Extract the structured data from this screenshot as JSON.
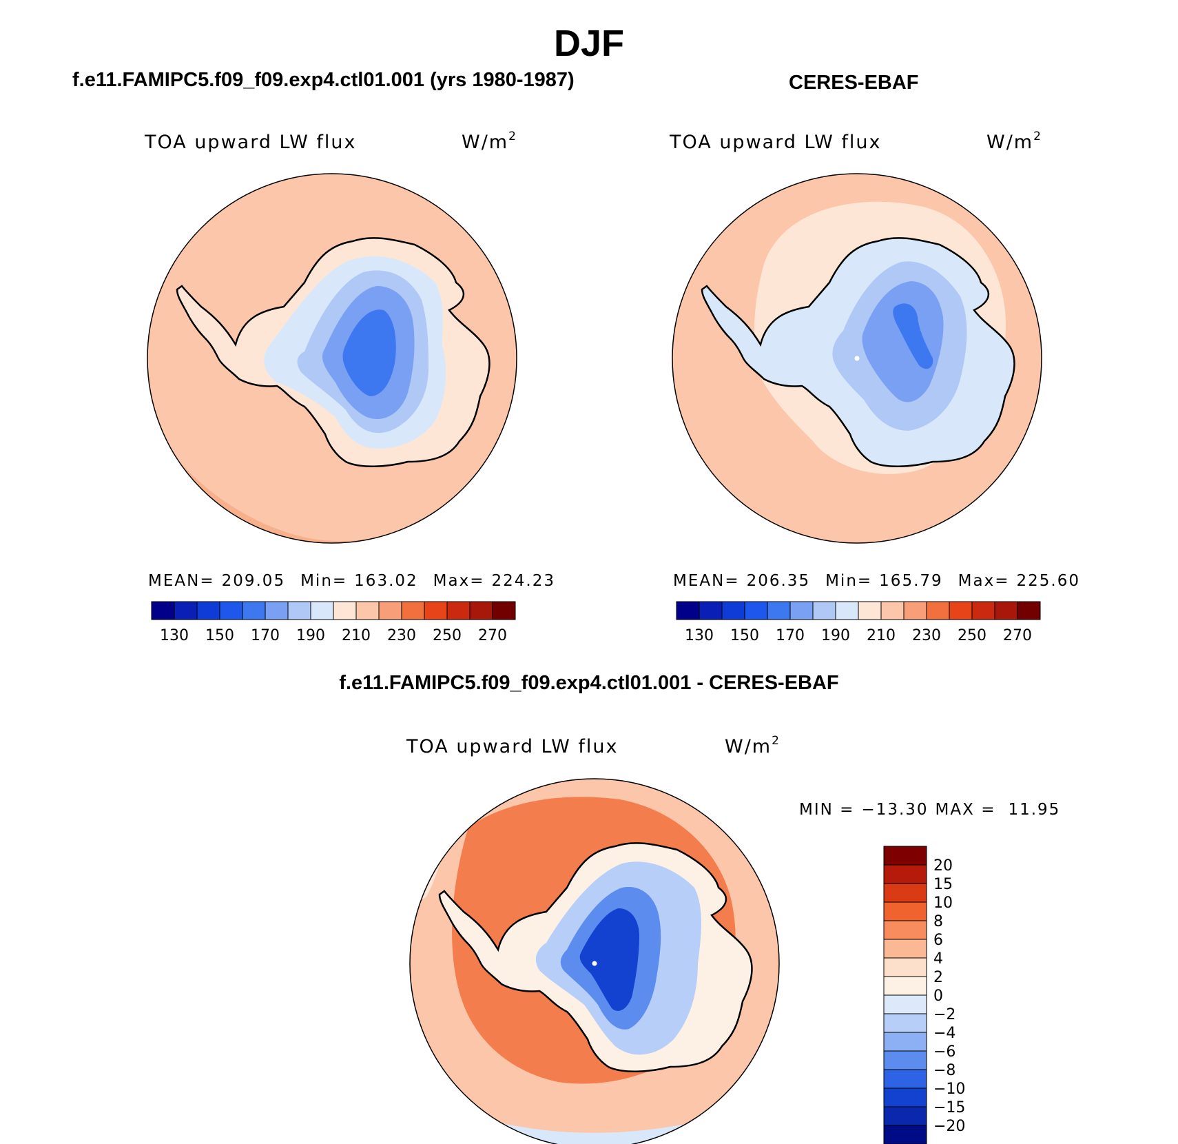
{
  "figure": {
    "title": "DJF"
  },
  "chart_data": [
    {
      "type": "heatmap",
      "header": "f.e11.FAMIPC5.f09_f09.exp4.ctl01.001 (yrs 1980-1987)",
      "variable": "TOA upward LW flux",
      "units": "W/m",
      "units_exp": "2",
      "stats": {
        "mean_label": "MEAN=",
        "mean": "209.05",
        "min_label": "Min=",
        "min": "163.02",
        "max_label": "Max=",
        "max": "224.23"
      },
      "levels": [
        130,
        150,
        170,
        190,
        210,
        230,
        250,
        270
      ],
      "level_labels": [
        "130",
        "150",
        "170",
        "190",
        "210",
        "230",
        "250",
        "270"
      ],
      "colors": [
        "#00008b",
        "#0a1fb5",
        "#0f3cd6",
        "#1e57ec",
        "#3e78f0",
        "#7aa0f3",
        "#b0c8f6",
        "#d8e8fa",
        "#fde6d6",
        "#fbc6aa",
        "#f89e78",
        "#f2703e",
        "#e8441a",
        "#cc2a10",
        "#a7180a",
        "#730000"
      ]
    },
    {
      "type": "heatmap",
      "header": "CERES-EBAF",
      "variable": "TOA upward LW flux",
      "units": "W/m",
      "units_exp": "2",
      "stats": {
        "mean_label": "MEAN=",
        "mean": "206.35",
        "min_label": "Min=",
        "min": "165.79",
        "max_label": "Max=",
        "max": "225.60"
      },
      "levels": [
        130,
        150,
        170,
        190,
        210,
        230,
        250,
        270
      ],
      "level_labels": [
        "130",
        "150",
        "170",
        "190",
        "210",
        "230",
        "250",
        "270"
      ],
      "colors": [
        "#00008b",
        "#0a1fb5",
        "#0f3cd6",
        "#1e57ec",
        "#3e78f0",
        "#7aa0f3",
        "#b0c8f6",
        "#d8e8fa",
        "#fde6d6",
        "#fbc6aa",
        "#f89e78",
        "#f2703e",
        "#e8441a",
        "#cc2a10",
        "#a7180a",
        "#730000"
      ]
    },
    {
      "type": "heatmap",
      "header": "f.e11.FAMIPC5.f09_f09.exp4.ctl01.001 - CERES-EBAF",
      "variable": "TOA upward LW flux",
      "units": "W/m",
      "units_exp": "2",
      "stats": {
        "min_label": "MIN =",
        "min": "−13.30",
        "max_label": "MAX =",
        "max": "11.95"
      },
      "levels": [
        20,
        15,
        10,
        8,
        6,
        4,
        2,
        0,
        -2,
        -4,
        -6,
        -8,
        -10,
        -15,
        -20
      ],
      "level_labels": [
        "20",
        "15",
        "10",
        "8",
        "6",
        "4",
        "2",
        "0",
        "−2",
        "−4",
        "−6",
        "−8",
        "−10",
        "−15",
        "−20"
      ],
      "colors": [
        "#7f0000",
        "#b51a0a",
        "#da3a14",
        "#f0622e",
        "#f88c5e",
        "#fbb894",
        "#fde0cc",
        "#fdf1e6",
        "#dbe9fb",
        "#b6cef8",
        "#8cb0f3",
        "#5c8cee",
        "#2f63e6",
        "#1242cf",
        "#0a28ae",
        "#000b86"
      ]
    }
  ]
}
